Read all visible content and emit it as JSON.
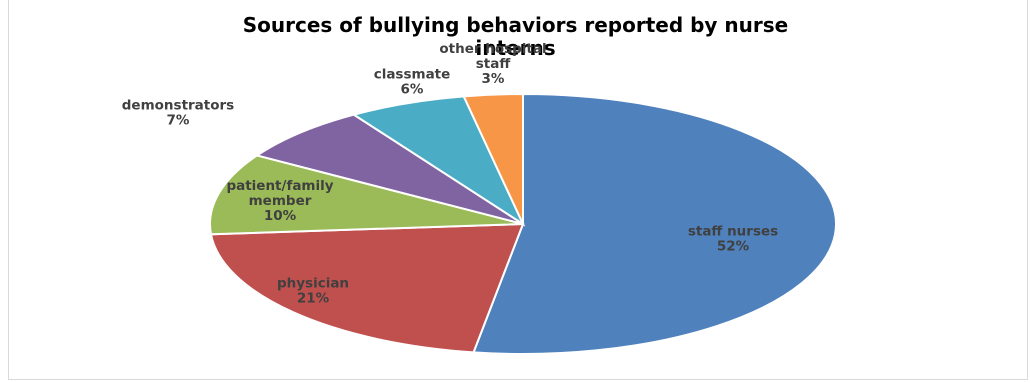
{
  "chart_data": {
    "type": "pie",
    "title": "Sources of bullying behaviors reported by nurse interns",
    "slices": [
      {
        "label": "staff nurses",
        "value": 52,
        "percent": "52%",
        "color": "#4f81bd"
      },
      {
        "label": "physician",
        "value": 21,
        "percent": "21%",
        "color": "#c0504d"
      },
      {
        "label": "patient/family member",
        "value": 10,
        "percent": "10%",
        "color": "#9bbb59"
      },
      {
        "label": "demonstrators",
        "value": 7,
        "percent": "7%",
        "color": "#8064a2"
      },
      {
        "label": "classmate",
        "value": 6,
        "percent": "6%",
        "color": "#4bacc6"
      },
      {
        "label": "other hospital staff",
        "value": 3,
        "percent": "3%",
        "color": "#f79646"
      }
    ]
  }
}
